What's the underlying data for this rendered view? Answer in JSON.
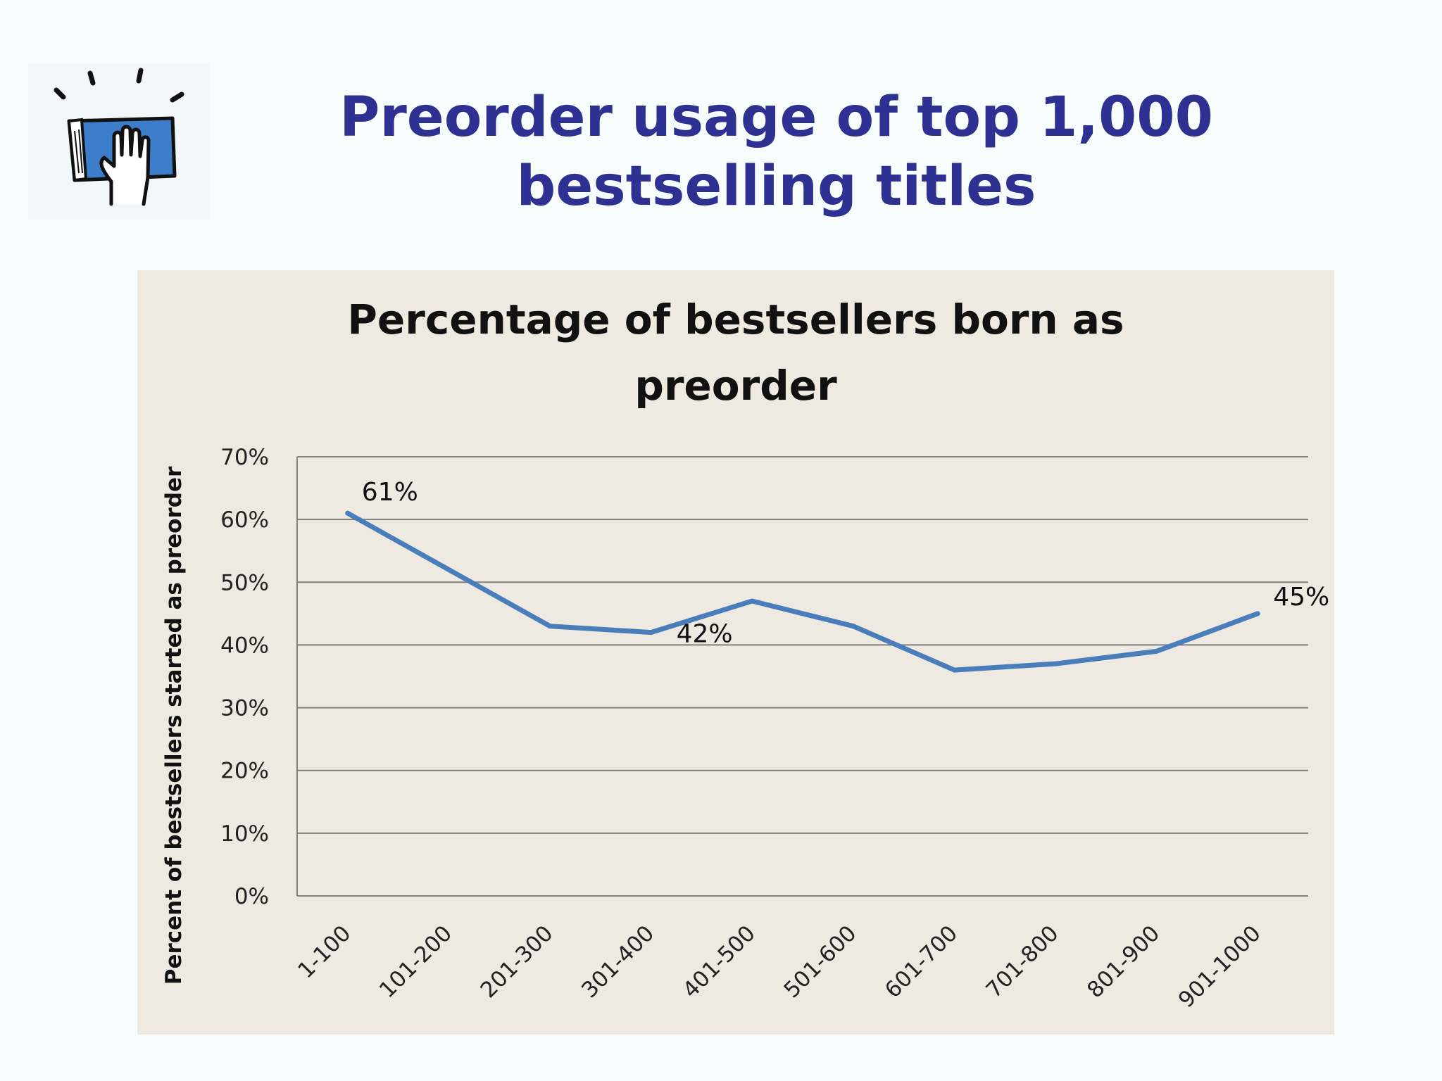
{
  "slide": {
    "title_line1": "Preorder usage of top 1,000",
    "title_line2": "bestselling titles",
    "logo_icon": "hand-on-book-icon"
  },
  "colors": {
    "title": "#2e3192",
    "line": "#4a7ebb",
    "panel": "#eeeae2",
    "grid": "#808080"
  },
  "chart_data": {
    "type": "line",
    "title_lines": [
      "Percentage of bestsellers born as",
      "preorder"
    ],
    "xlabel": "",
    "ylabel": "Percent of bestsellers started as preorder",
    "categories": [
      "1-100",
      "101-200",
      "201-300",
      "301-400",
      "401-500",
      "501-600",
      "601-700",
      "701-800",
      "801-900",
      "901-1000"
    ],
    "series": [
      {
        "values": [
          61,
          52,
          43,
          42,
          47,
          43,
          36,
          37,
          39,
          45
        ]
      }
    ],
    "ylim": [
      0,
      70
    ],
    "yticks": [
      0,
      10,
      20,
      30,
      40,
      50,
      60,
      70
    ],
    "ytick_labels": [
      "0%",
      "10%",
      "20%",
      "30%",
      "40%",
      "50%",
      "60%",
      "70%"
    ],
    "data_labels": [
      {
        "index": 0,
        "text": "61%"
      },
      {
        "index": 3,
        "text": "42%"
      },
      {
        "index": 9,
        "text": "45%"
      }
    ],
    "grid": true,
    "legend": "none"
  }
}
